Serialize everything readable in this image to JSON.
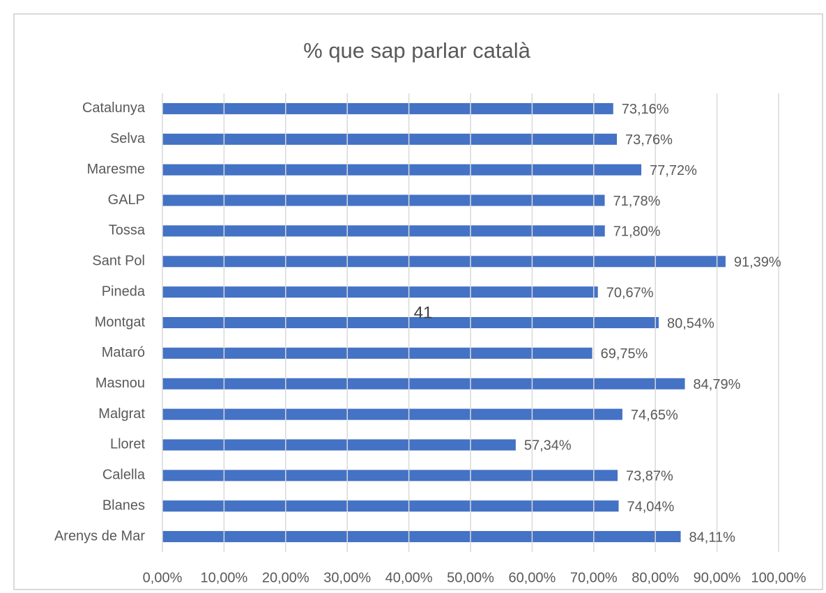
{
  "chart_data": {
    "type": "bar",
    "orientation": "horizontal",
    "title": "% que sap parlar català",
    "categories": [
      "Catalunya",
      "Selva",
      "Maresme",
      "GALP",
      "Tossa",
      "Sant Pol",
      "Pineda",
      "Montgat",
      "Mataró",
      "Masnou",
      "Malgrat",
      "Lloret",
      "Calella",
      "Blanes",
      "Arenys de Mar"
    ],
    "values": [
      73.16,
      73.76,
      77.72,
      71.78,
      71.8,
      91.39,
      70.67,
      80.54,
      69.75,
      84.79,
      74.65,
      57.34,
      73.87,
      74.04,
      84.11
    ],
    "value_labels": [
      "73,16%",
      "73,76%",
      "77,72%",
      "71,78%",
      "71,80%",
      "91,39%",
      "70,67%",
      "80,54%",
      "69,75%",
      "84,79%",
      "74,65%",
      "57,34%",
      "73,87%",
      "74,04%",
      "84,11%"
    ],
    "color": "#4472c4",
    "xlim": [
      0,
      100
    ],
    "xticks": [
      {
        "value": 0,
        "label": "0,00%"
      },
      {
        "value": 10,
        "label": "10,00%"
      },
      {
        "value": 20,
        "label": "20,00%"
      },
      {
        "value": 30,
        "label": "30,00%"
      },
      {
        "value": 40,
        "label": "40,00%"
      },
      {
        "value": 50,
        "label": "50,00%"
      },
      {
        "value": 60,
        "label": "60,00%"
      },
      {
        "value": 70,
        "label": "70,00%"
      },
      {
        "value": 80,
        "label": "80,00%"
      },
      {
        "value": 90,
        "label": "90,00%"
      },
      {
        "value": 100,
        "label": "100,00%"
      }
    ],
    "grid": true,
    "annotation": "41"
  }
}
